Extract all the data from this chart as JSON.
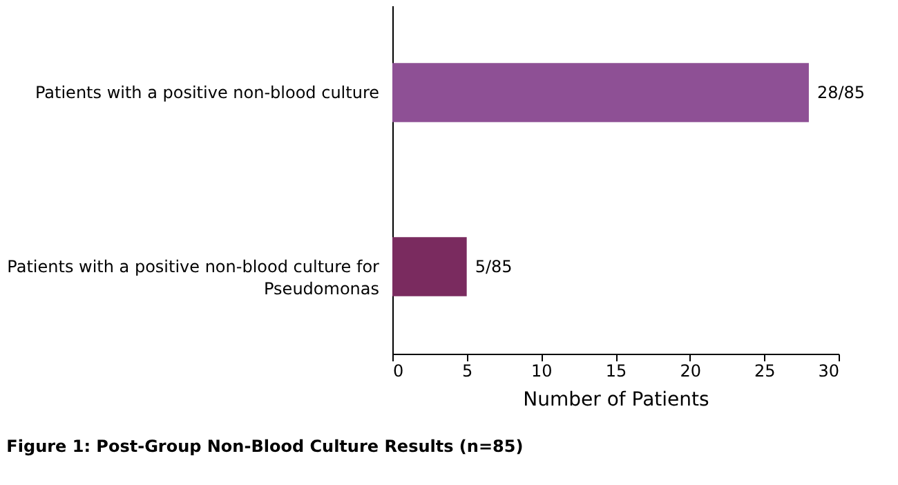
{
  "chart_data": {
    "type": "bar",
    "orientation": "horizontal",
    "categories": [
      "Patients with a positive non-blood culture",
      "Patients with a positive non-blood culture for Pseudomonas"
    ],
    "values": [
      28,
      5
    ],
    "colors": [
      "#8e5095",
      "#7a2b5f"
    ],
    "value_labels": [
      "28/85",
      "5/85"
    ],
    "xlim": [
      0,
      30
    ],
    "xticks": [
      0,
      5,
      10,
      15,
      20,
      25,
      30
    ],
    "xlabel": "Number of Patients",
    "annotations": [
      "Figure 1: Post-Group Non-Blood Culture Results (n=85)"
    ],
    "grid": false,
    "legend": false
  }
}
